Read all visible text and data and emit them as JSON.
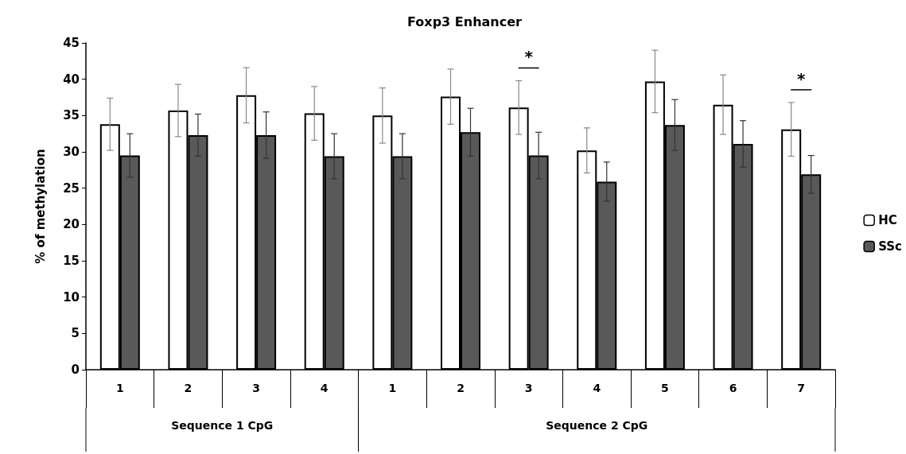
{
  "chart_data": {
    "type": "bar",
    "title": "Foxp3 Enhancer",
    "ylabel": "% of methylation",
    "categories": [
      "1",
      "2",
      "3",
      "4",
      "1",
      "2",
      "3",
      "4",
      "5",
      "6",
      "7"
    ],
    "series": [
      {
        "name": "HC",
        "color": "#ffffff",
        "values": [
          33.8,
          35.7,
          37.8,
          35.3,
          35.0,
          37.6,
          36.1,
          30.2,
          39.7,
          36.5,
          33.1
        ],
        "errors": [
          3.6,
          3.6,
          3.8,
          3.7,
          3.8,
          3.8,
          3.7,
          3.1,
          4.3,
          4.1,
          3.7
        ]
      },
      {
        "name": "SSc",
        "color": "#595959",
        "values": [
          29.5,
          32.3,
          32.3,
          29.4,
          29.4,
          32.7,
          29.5,
          25.9,
          33.7,
          31.1,
          26.9
        ],
        "errors": [
          3.0,
          2.9,
          3.2,
          3.1,
          3.1,
          3.3,
          3.2,
          2.7,
          3.5,
          3.2,
          2.6
        ]
      }
    ],
    "ylim": [
      0,
      45
    ],
    "yticks": [
      0,
      5,
      10,
      15,
      20,
      25,
      30,
      35,
      40,
      45
    ],
    "grid": false,
    "legend": "right",
    "annotations": [
      "*",
      "*",
      "Sequence 1 CpG",
      "Sequence 2 CpG"
    ]
  }
}
